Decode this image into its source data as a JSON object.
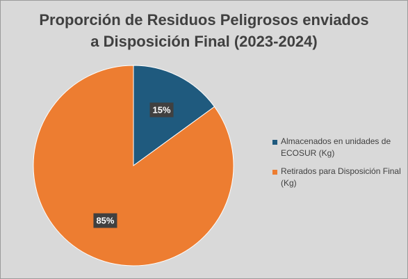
{
  "chart_data": {
    "type": "pie",
    "title_lines": [
      "Proporción de Residuos Peligrosos enviados",
      "a Disposición Final (2023-2024)"
    ],
    "slices": [
      {
        "label": "Almacenados en unidades de ECOSUR (Kg)",
        "value": 15,
        "display": "15%",
        "color": "#1f5a7e"
      },
      {
        "label": "Retirados para Disposición Final (Kg)",
        "value": 85,
        "display": "85%",
        "color": "#ed7d31"
      }
    ],
    "legend_position": "right"
  }
}
